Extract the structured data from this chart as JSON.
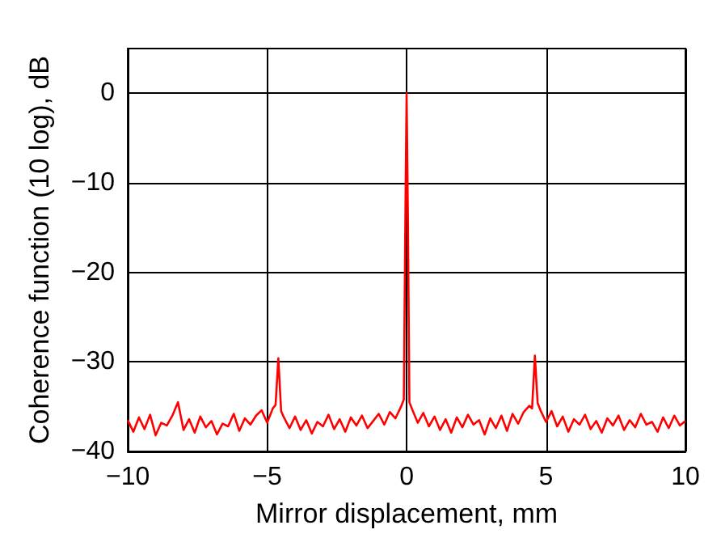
{
  "chart_data": {
    "type": "line",
    "xlabel": "Mirror displacement, mm",
    "ylabel": "Coherence function (10 log), dB",
    "x": [
      -10,
      -9.8,
      -9.6,
      -9.4,
      -9.2,
      -9,
      -8.8,
      -8.6,
      -8.4,
      -8.2,
      -8,
      -7.8,
      -7.6,
      -7.4,
      -7.2,
      -7,
      -6.8,
      -6.6,
      -6.4,
      -6.2,
      -6,
      -5.8,
      -5.6,
      -5.4,
      -5.2,
      -5,
      -4.8,
      -4.7,
      -4.6,
      -4.5,
      -4.4,
      -4.2,
      -4,
      -3.8,
      -3.6,
      -3.4,
      -3.2,
      -3,
      -2.8,
      -2.6,
      -2.4,
      -2.2,
      -2,
      -1.8,
      -1.6,
      -1.4,
      -1.2,
      -1,
      -0.8,
      -0.6,
      -0.4,
      -0.2,
      -0.1,
      -0.05,
      0,
      0.05,
      0.1,
      0.2,
      0.4,
      0.6,
      0.8,
      1,
      1.2,
      1.4,
      1.6,
      1.8,
      2,
      2.2,
      2.4,
      2.6,
      2.8,
      3,
      3.2,
      3.4,
      3.6,
      3.8,
      4,
      4.2,
      4.4,
      4.5,
      4.6,
      4.7,
      4.8,
      5,
      5.2,
      5.4,
      5.6,
      5.8,
      6,
      6.2,
      6.4,
      6.6,
      6.8,
      7,
      7.2,
      7.4,
      7.6,
      7.8,
      8,
      8.2,
      8.4,
      8.6,
      8.8,
      9,
      9.2,
      9.4,
      9.6,
      9.8,
      10
    ],
    "series": [
      {
        "color": "#ff0000",
        "values": [
          -36.5,
          -37.8,
          -36.2,
          -37.5,
          -35.9,
          -38.2,
          -36.8,
          -37.1,
          -36,
          -34.5,
          -37.6,
          -36.4,
          -37.9,
          -36.1,
          -37.3,
          -36.6,
          -38.1,
          -36.9,
          -37.2,
          -35.8,
          -37.7,
          -36.3,
          -37,
          -36,
          -35.4,
          -36.8,
          -35.2,
          -34.8,
          -29.6,
          -35.5,
          -36.2,
          -37.4,
          -36.1,
          -37.6,
          -36.5,
          -38,
          -36.7,
          -37.2,
          -35.9,
          -37.5,
          -36.4,
          -37.8,
          -36.2,
          -37.1,
          -36,
          -37.4,
          -36.6,
          -35.8,
          -37,
          -35.6,
          -36.3,
          -35,
          -34.2,
          -16,
          0,
          -15,
          -34.5,
          -35.3,
          -36.8,
          -35.7,
          -37.2,
          -36.1,
          -37.6,
          -36.4,
          -37.9,
          -36.2,
          -37.3,
          -35.9,
          -37,
          -36.5,
          -38.1,
          -36.3,
          -37.4,
          -36,
          -37.7,
          -35.8,
          -36.9,
          -35.6,
          -34.9,
          -35.2,
          -29.3,
          -34.6,
          -35.4,
          -36.7,
          -35.5,
          -37.2,
          -36.1,
          -37.8,
          -36.4,
          -37,
          -35.9,
          -37.5,
          -36.6,
          -37.9,
          -36.3,
          -37.1,
          -36,
          -37.6,
          -36.5,
          -37.3,
          -35.8,
          -37,
          -36.7,
          -37.8,
          -36.2,
          -37.4,
          -36,
          -37.1,
          -36.6
        ]
      }
    ],
    "xlim": [
      -10,
      10
    ],
    "xticks": [
      -10,
      -5,
      0,
      5,
      10
    ],
    "ylim": [
      -40,
      5
    ],
    "yticks": [
      -40,
      -30,
      -20,
      -10,
      0
    ],
    "grid": true,
    "marker": "none",
    "line_style": "solid"
  }
}
